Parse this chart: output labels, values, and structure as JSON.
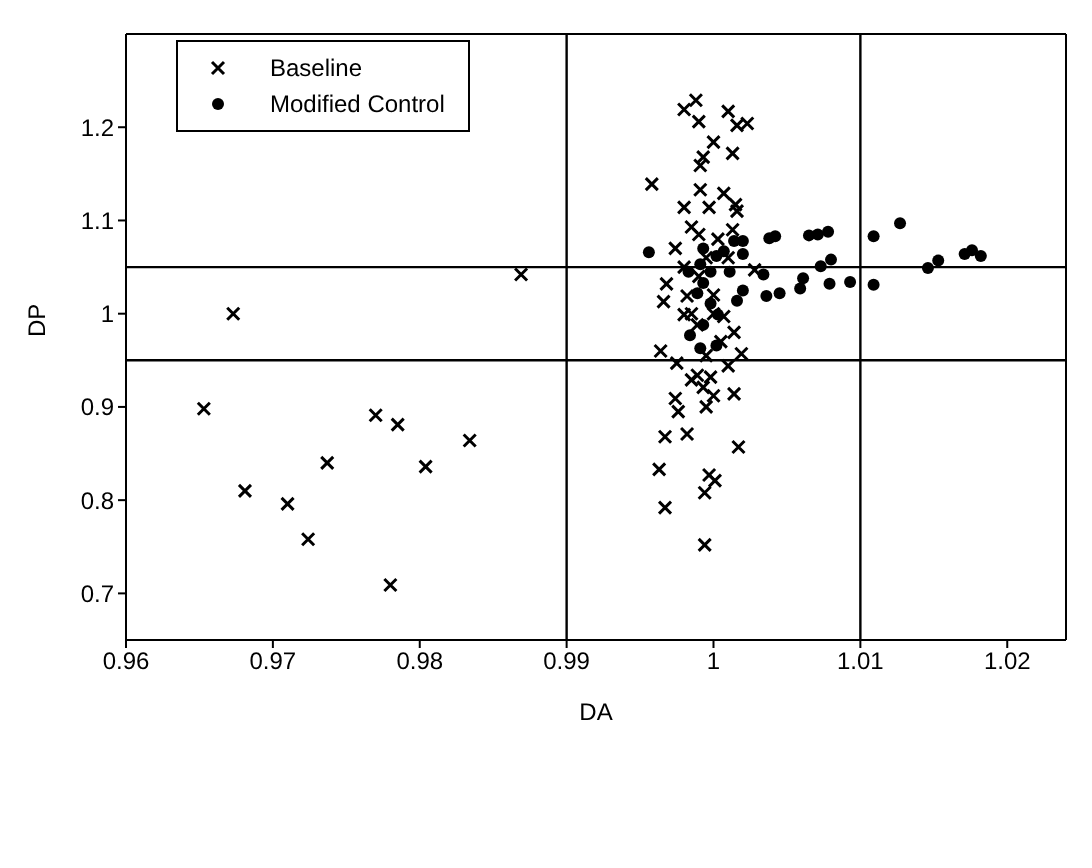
{
  "chart_data": {
    "type": "scatter",
    "xlabel": "DA",
    "ylabel": "DP",
    "xlim": [
      0.96,
      1.024
    ],
    "ylim": [
      0.65,
      1.3
    ],
    "xticks": [
      0.96,
      0.97,
      0.98,
      0.99,
      1,
      1.01,
      1.02
    ],
    "yticks": [
      0.7,
      0.8,
      0.9,
      1,
      1.1,
      1.2
    ],
    "grid": false,
    "legend": "top left",
    "ref_lines": [
      {
        "axis": "x",
        "value": 0.99,
        "color": "#000000"
      },
      {
        "axis": "x",
        "value": 1.01,
        "color": "#000000"
      },
      {
        "axis": "y",
        "value": 1.05,
        "color": "#000000"
      },
      {
        "axis": "y",
        "value": 0.95,
        "color": "#000000"
      }
    ],
    "series": [
      {
        "name": "Baseline",
        "color": "#000000",
        "marker": "cross",
        "x": [
          0.9653,
          0.9681,
          0.971,
          0.9724,
          0.9737,
          0.977,
          0.9785,
          0.978,
          0.9804,
          0.9834,
          0.9673,
          0.9869,
          0.9988,
          0.998,
          0.999,
          1.001,
          1.0016,
          1.0023,
          1.0,
          0.9993,
          1.0013,
          0.9991,
          0.9958,
          0.9991,
          1.0007,
          0.998,
          0.9997,
          1.0015,
          1.0016,
          0.9985,
          1.0013,
          0.9974,
          1.0003,
          1.0028,
          0.998,
          0.9968,
          0.9966,
          0.9982,
          0.998,
          0.9989,
          1.0007,
          1.0014,
          0.9964,
          1.0019,
          0.9975,
          1.001,
          0.9989,
          0.9998,
          0.9985,
          0.9993,
          1.0,
          1.0014,
          0.9974,
          0.9976,
          0.9995,
          0.9967,
          0.9982,
          1.0017,
          0.9963,
          0.9997,
          1.0001,
          0.9994,
          0.9967,
          0.9994,
          0.999,
          1.0,
          1.001,
          0.9985,
          1.0005,
          0.9995,
          1.0,
          0.999,
          0.9995
        ],
        "values": [
          0.898,
          0.81,
          0.796,
          0.758,
          0.84,
          0.891,
          0.881,
          0.709,
          0.836,
          0.864,
          1.0,
          1.042,
          1.229,
          1.219,
          1.206,
          1.217,
          1.202,
          1.204,
          1.184,
          1.168,
          1.172,
          1.159,
          1.139,
          1.133,
          1.129,
          1.114,
          1.114,
          1.117,
          1.11,
          1.093,
          1.09,
          1.07,
          1.08,
          1.047,
          1.05,
          1.032,
          1.013,
          1.019,
          0.999,
          0.988,
          0.997,
          0.98,
          0.96,
          0.957,
          0.947,
          0.944,
          0.934,
          0.932,
          0.929,
          0.921,
          0.912,
          0.914,
          0.909,
          0.895,
          0.9,
          0.868,
          0.871,
          0.857,
          0.833,
          0.827,
          0.821,
          0.808,
          0.792,
          0.752,
          1.04,
          1.02,
          1.06,
          1.0,
          0.97,
          0.955,
          1.0,
          1.085,
          1.06
        ]
      },
      {
        "name": "Modified Control",
        "color": "#000000",
        "marker": "circle",
        "x": [
          0.9956,
          0.9993,
          1.002,
          1.0038,
          1.0042,
          1.0065,
          1.0071,
          1.0078,
          1.0109,
          1.0127,
          1.008,
          1.0073,
          0.9991,
          1.0002,
          1.0011,
          1.002,
          1.0034,
          1.0061,
          1.0079,
          1.0093,
          1.0109,
          1.0059,
          1.0036,
          1.0045,
          1.002,
          1.0146,
          1.0153,
          1.0171,
          1.0176,
          1.0182,
          0.9993,
          0.9998,
          1.0003,
          0.9993,
          1.0016,
          0.9984,
          0.9989,
          0.9998,
          1.0007,
          1.0014,
          0.9983,
          1.0002,
          0.9991
        ],
        "values": [
          1.066,
          1.07,
          1.078,
          1.081,
          1.083,
          1.084,
          1.085,
          1.088,
          1.083,
          1.097,
          1.058,
          1.051,
          1.053,
          1.062,
          1.045,
          1.064,
          1.042,
          1.038,
          1.032,
          1.034,
          1.031,
          1.027,
          1.019,
          1.022,
          1.025,
          1.049,
          1.057,
          1.064,
          1.068,
          1.062,
          1.033,
          1.011,
          0.999,
          0.988,
          1.014,
          0.977,
          1.022,
          1.045,
          1.067,
          1.078,
          1.045,
          0.966,
          0.963
        ]
      }
    ]
  }
}
